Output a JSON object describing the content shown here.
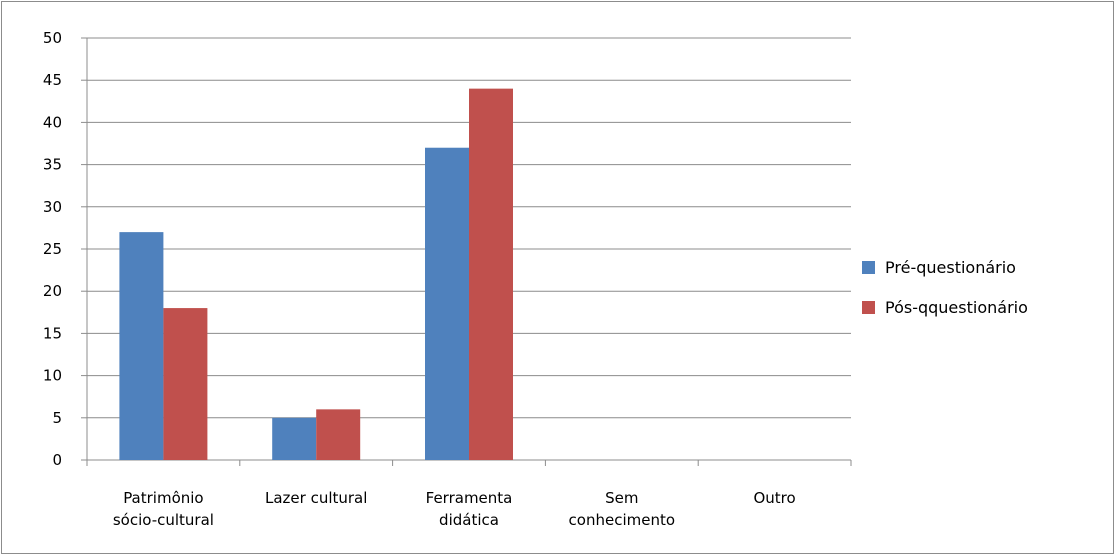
{
  "chart_data": {
    "type": "bar",
    "categories": [
      [
        "Patrimônio",
        "sócio-cultural"
      ],
      [
        "Lazer cultural"
      ],
      [
        "Ferramenta",
        "didática"
      ],
      [
        "Sem",
        "conhecimento"
      ],
      [
        "Outro"
      ]
    ],
    "series": [
      {
        "name": "Pré-questionário",
        "color": "#4f81bd",
        "values": [
          27,
          5,
          37,
          0,
          0
        ]
      },
      {
        "name": "Pós-qquestionário",
        "color": "#c0504d",
        "values": [
          18,
          6,
          44,
          0,
          0
        ]
      }
    ],
    "ylim": [
      0,
      50
    ],
    "yticks": [
      "0",
      "5",
      "10",
      "15",
      "20",
      "25",
      "30",
      "35",
      "40",
      "45",
      "50"
    ],
    "grid": true,
    "legend_position": "right"
  }
}
